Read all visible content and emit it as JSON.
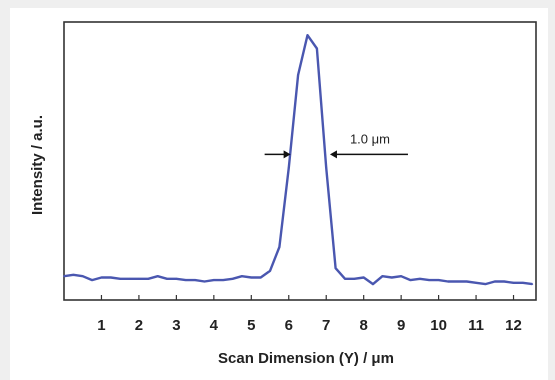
{
  "chart_data": {
    "type": "line",
    "title": "",
    "xlabel": "Scan Dimension (Y) / μm",
    "ylabel": "Intensity / a.u.",
    "xlim": [
      0,
      12.6
    ],
    "ylim": [
      0,
      1.05
    ],
    "xticks": [
      1,
      2,
      3,
      4,
      5,
      6,
      7,
      8,
      9,
      10,
      11,
      12
    ],
    "yticks_labeled": false,
    "grid": false,
    "legend": "none",
    "line_color": "#4a57b0",
    "annotation": {
      "text": "1.0 μm",
      "left_x": 6.05,
      "right_x": 7.1,
      "y": 0.55
    },
    "series": [
      {
        "x": [
          0.0,
          0.25,
          0.5,
          0.75,
          1.0,
          1.25,
          1.5,
          1.75,
          2.0,
          2.25,
          2.5,
          2.75,
          3.0,
          3.25,
          3.5,
          3.75,
          4.0,
          4.25,
          4.5,
          4.75,
          5.0,
          5.25,
          5.5,
          5.75,
          6.0,
          6.25,
          6.5,
          6.75,
          7.0,
          7.25,
          7.5,
          7.75,
          8.0,
          8.25,
          8.5,
          8.75,
          9.0,
          9.25,
          9.5,
          9.75,
          10.0,
          10.25,
          10.5,
          10.75,
          11.0,
          11.25,
          11.5,
          11.75,
          12.0,
          12.25,
          12.5
        ],
        "y": [
          0.09,
          0.095,
          0.09,
          0.075,
          0.085,
          0.085,
          0.08,
          0.08,
          0.08,
          0.08,
          0.09,
          0.08,
          0.08,
          0.075,
          0.075,
          0.07,
          0.075,
          0.075,
          0.08,
          0.09,
          0.085,
          0.085,
          0.11,
          0.2,
          0.5,
          0.85,
          1.0,
          0.95,
          0.5,
          0.12,
          0.08,
          0.08,
          0.085,
          0.06,
          0.09,
          0.085,
          0.09,
          0.075,
          0.08,
          0.075,
          0.075,
          0.07,
          0.07,
          0.07,
          0.065,
          0.06,
          0.07,
          0.07,
          0.065,
          0.065,
          0.06
        ]
      }
    ]
  }
}
